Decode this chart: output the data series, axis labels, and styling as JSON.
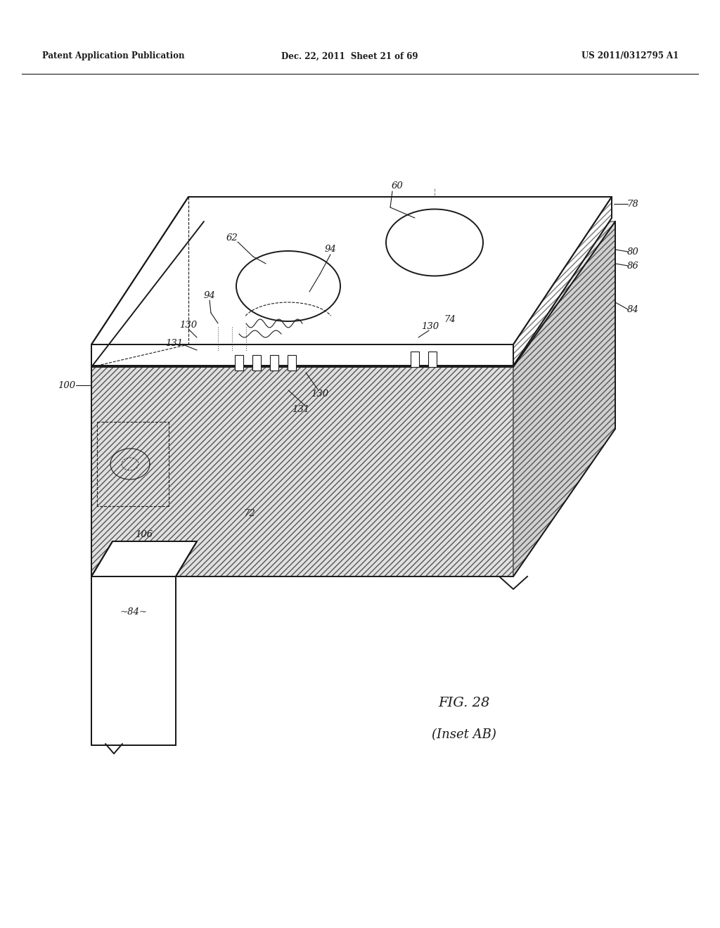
{
  "title_left": "Patent Application Publication",
  "title_mid": "Dec. 22, 2011  Sheet 21 of 69",
  "title_right": "US 2011/0312795 A1",
  "fig_label": "FIG. 28",
  "fig_sublabel": "(Inset AB)",
  "bg_color": "#ffffff",
  "line_color": "#1a1a1a"
}
